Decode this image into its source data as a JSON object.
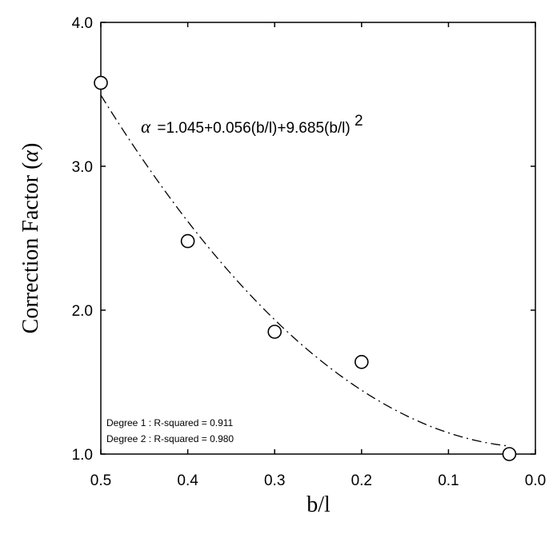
{
  "chart_data": {
    "type": "scatter",
    "xlabel": "b/l",
    "ylabel": "Correction Factor (",
    "ylabel_symbol": "α",
    "ylabel_close": ")",
    "x_reversed": true,
    "xlim": [
      0.0,
      0.5
    ],
    "ylim": [
      1.0,
      4.0
    ],
    "x_ticks": [
      0.5,
      0.4,
      0.3,
      0.2,
      0.1,
      0.0
    ],
    "x_tick_labels": [
      "0.5",
      "0.4",
      "0.3",
      "0.2",
      "0.1",
      "0.0"
    ],
    "y_ticks": [
      1.0,
      2.0,
      3.0,
      4.0
    ],
    "y_tick_labels": [
      "1.0",
      "2.0",
      "3.0",
      "4.0"
    ],
    "grid": false,
    "points": [
      {
        "x": 0.5,
        "y": 3.58
      },
      {
        "x": 0.4,
        "y": 2.48
      },
      {
        "x": 0.3,
        "y": 1.85
      },
      {
        "x": 0.2,
        "y": 1.64
      },
      {
        "x": 0.03,
        "y": 1.0
      }
    ],
    "fit": {
      "c0": 1.045,
      "c1": 0.056,
      "c2": 9.685,
      "style": "dash-dot"
    },
    "equation": {
      "symbol": "α",
      "text": "=1.045+0.056(b/l)+9.685(b/l)",
      "exponent": "2"
    },
    "annotations": [
      "Degree 1 : R-squared = 0.911",
      "Degree 2 : R-squared = 0.980"
    ]
  }
}
